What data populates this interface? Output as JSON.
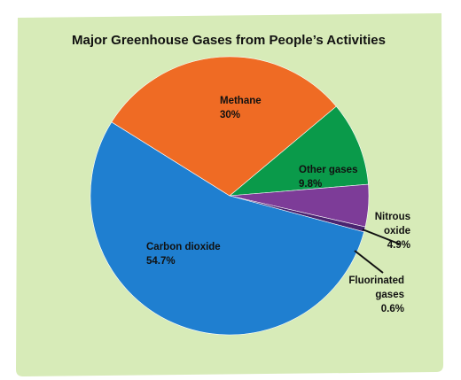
{
  "chart_data": {
    "type": "pie",
    "title": "Major Greenhouse Gases from People’s Activities",
    "start_angle_deg": -40,
    "direction": "clockwise",
    "slices": [
      {
        "name": "Other gases",
        "value": 9.8,
        "label": [
          "Other gases",
          "9.8%"
        ],
        "color": "#0a9a4a"
      },
      {
        "name": "Nitrous oxide",
        "value": 4.9,
        "label": [
          "Nitrous",
          "oxide",
          "4.9%"
        ],
        "color": "#7d3c98"
      },
      {
        "name": "Fluorinated gases",
        "value": 0.6,
        "label": [
          "Fluorinated",
          "gases",
          "0.6%"
        ],
        "color": "#4a2470"
      },
      {
        "name": "Carbon dioxide",
        "value": 54.7,
        "label": [
          "Carbon dioxide",
          "54.7%"
        ],
        "color": "#1f7fd0"
      },
      {
        "name": "Methane",
        "value": 30,
        "label": [
          "Methane",
          "30%"
        ],
        "color": "#ef6b24"
      }
    ],
    "background_color": "#d7ebb8",
    "legend": "none"
  }
}
